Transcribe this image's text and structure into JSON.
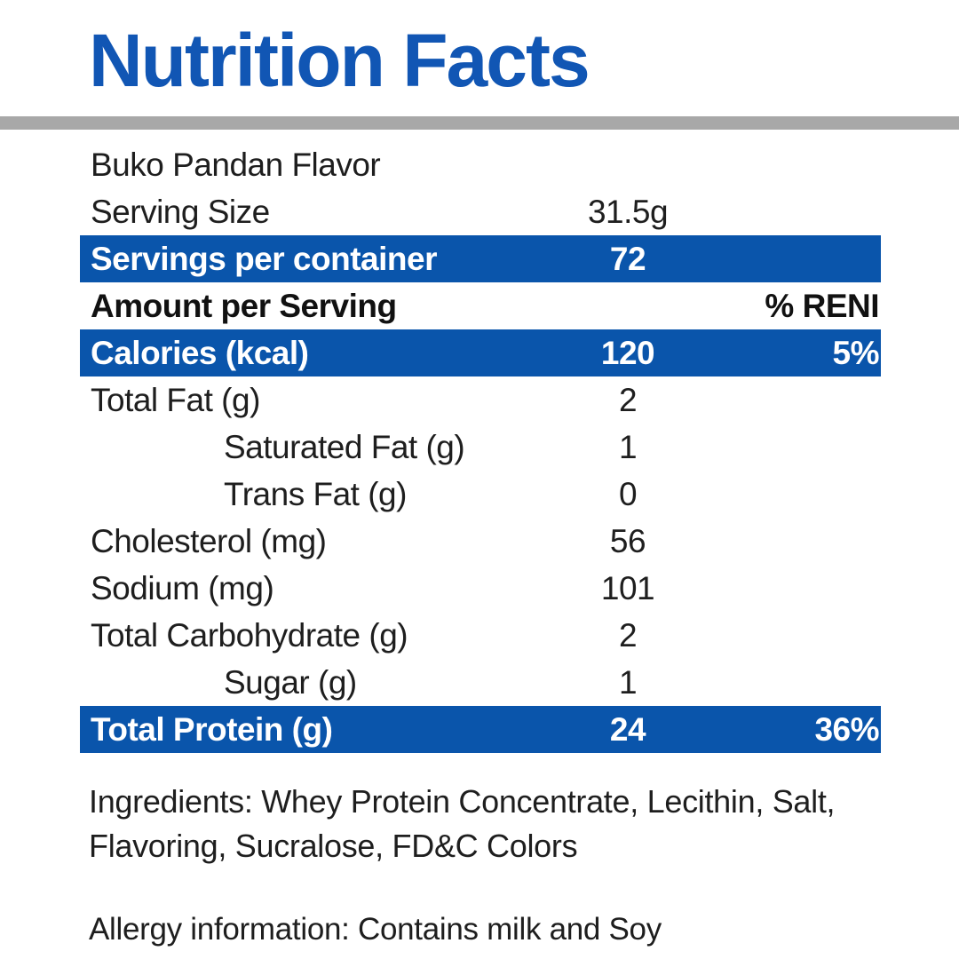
{
  "title": "Nutrition Facts",
  "colors": {
    "accent_blue": "#0a55ab",
    "title_blue": "#1156b4",
    "divider_gray": "#a8a8a8"
  },
  "table": {
    "flavor_line": "Buko Pandan Flavor",
    "rows": [
      {
        "label": "Serving Size",
        "amount": "31.5g",
        "percent": ""
      },
      {
        "label": "Servings per container",
        "amount": "72",
        "percent": ""
      },
      {
        "label": "Amount per Serving",
        "amount": "",
        "percent": "% RENI"
      },
      {
        "label": "Calories (kcal)",
        "amount": "120",
        "percent": "5%"
      },
      {
        "label": "Total Fat (g)",
        "amount": "2",
        "percent": ""
      },
      {
        "label": "Saturated Fat (g)",
        "amount": "1",
        "percent": ""
      },
      {
        "label": "Trans Fat (g)",
        "amount": "0",
        "percent": ""
      },
      {
        "label": "Cholesterol (mg)",
        "amount": "56",
        "percent": ""
      },
      {
        "label": "Sodium (mg)",
        "amount": "101",
        "percent": ""
      },
      {
        "label": "Total Carbohydrate (g)",
        "amount": "2",
        "percent": ""
      },
      {
        "label": "Sugar (g)",
        "amount": "1",
        "percent": ""
      },
      {
        "label": "Total Protein (g)",
        "amount": "24",
        "percent": "36%"
      }
    ]
  },
  "ingredients": {
    "line1": "Ingredients: Whey Protein Concentrate, Lecithin, Salt,",
    "line2": "Flavoring, Sucralose, FD&C Colors"
  },
  "allergy": "Allergy information: Contains milk and Soy"
}
